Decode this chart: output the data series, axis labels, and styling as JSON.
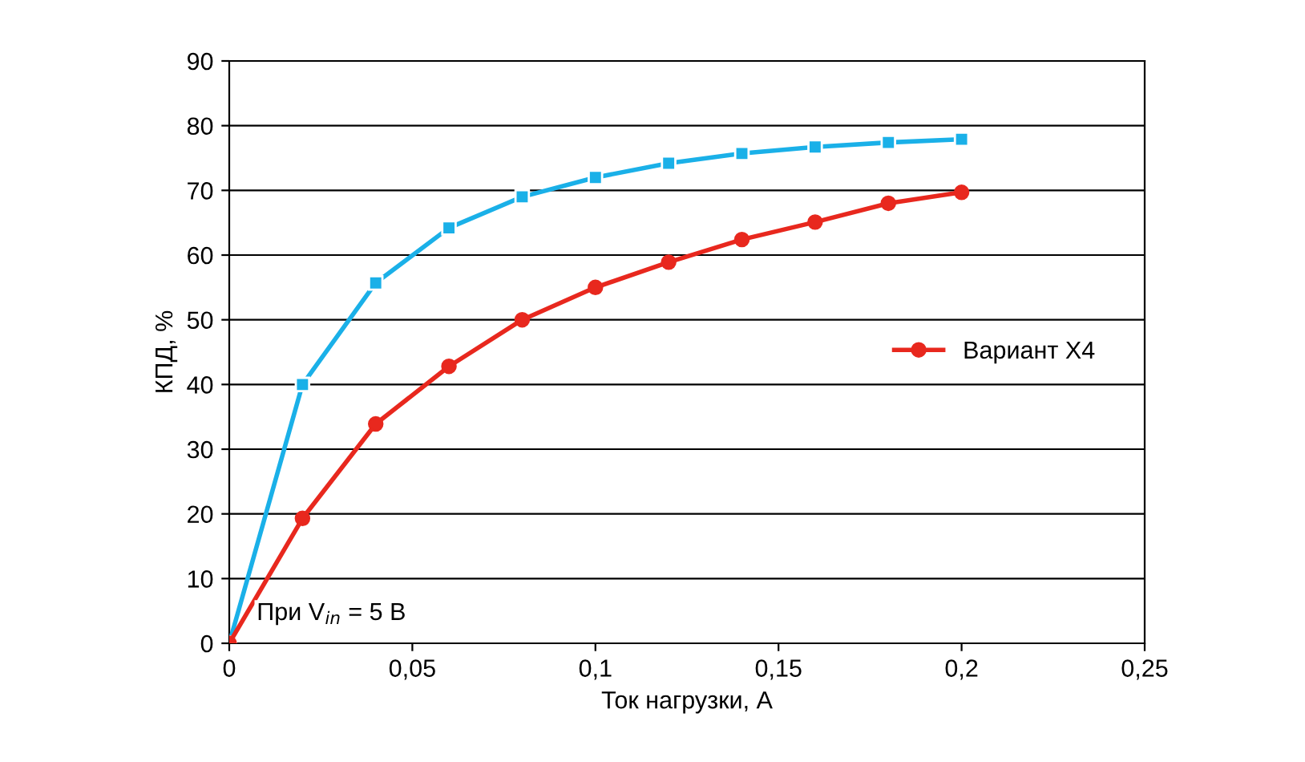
{
  "chart_data": {
    "type": "line",
    "xlabel": "Ток нагрузки, А",
    "ylabel": "КПД, %",
    "x": [
      0,
      0.02,
      0.04,
      0.06,
      0.08,
      0.1,
      0.12,
      0.14,
      0.16,
      0.18,
      0.2
    ],
    "series": [
      {
        "color": "#1ab0e8",
        "marker": "square",
        "values": [
          0,
          40,
          55.7,
          64.2,
          69,
          72,
          74.2,
          75.7,
          76.7,
          77.4,
          77.9
        ]
      },
      {
        "name": "Вариант X4",
        "color": "#e8281e",
        "marker": "circle",
        "values": [
          0,
          19.3,
          33.9,
          42.8,
          50,
          55,
          58.9,
          62.4,
          65.1,
          68,
          69.7
        ]
      }
    ],
    "xlim": [
      0,
      0.25
    ],
    "ylim": [
      0,
      90
    ],
    "xticks": [
      0,
      {
        "value": 0.05,
        "label": "0,05"
      },
      {
        "value": 0.1,
        "label": "0,1"
      },
      {
        "value": 0.15,
        "label": "0,15"
      },
      {
        "value": 0.2,
        "label": "0,2"
      },
      {
        "value": 0.25,
        "label": "0,25"
      }
    ],
    "yticks": [
      0,
      10,
      20,
      30,
      40,
      50,
      60,
      70,
      80,
      90
    ],
    "grid": "y",
    "legend": "right",
    "annotations": [
      "При V$_{in}$ = 5 В"
    ]
  }
}
